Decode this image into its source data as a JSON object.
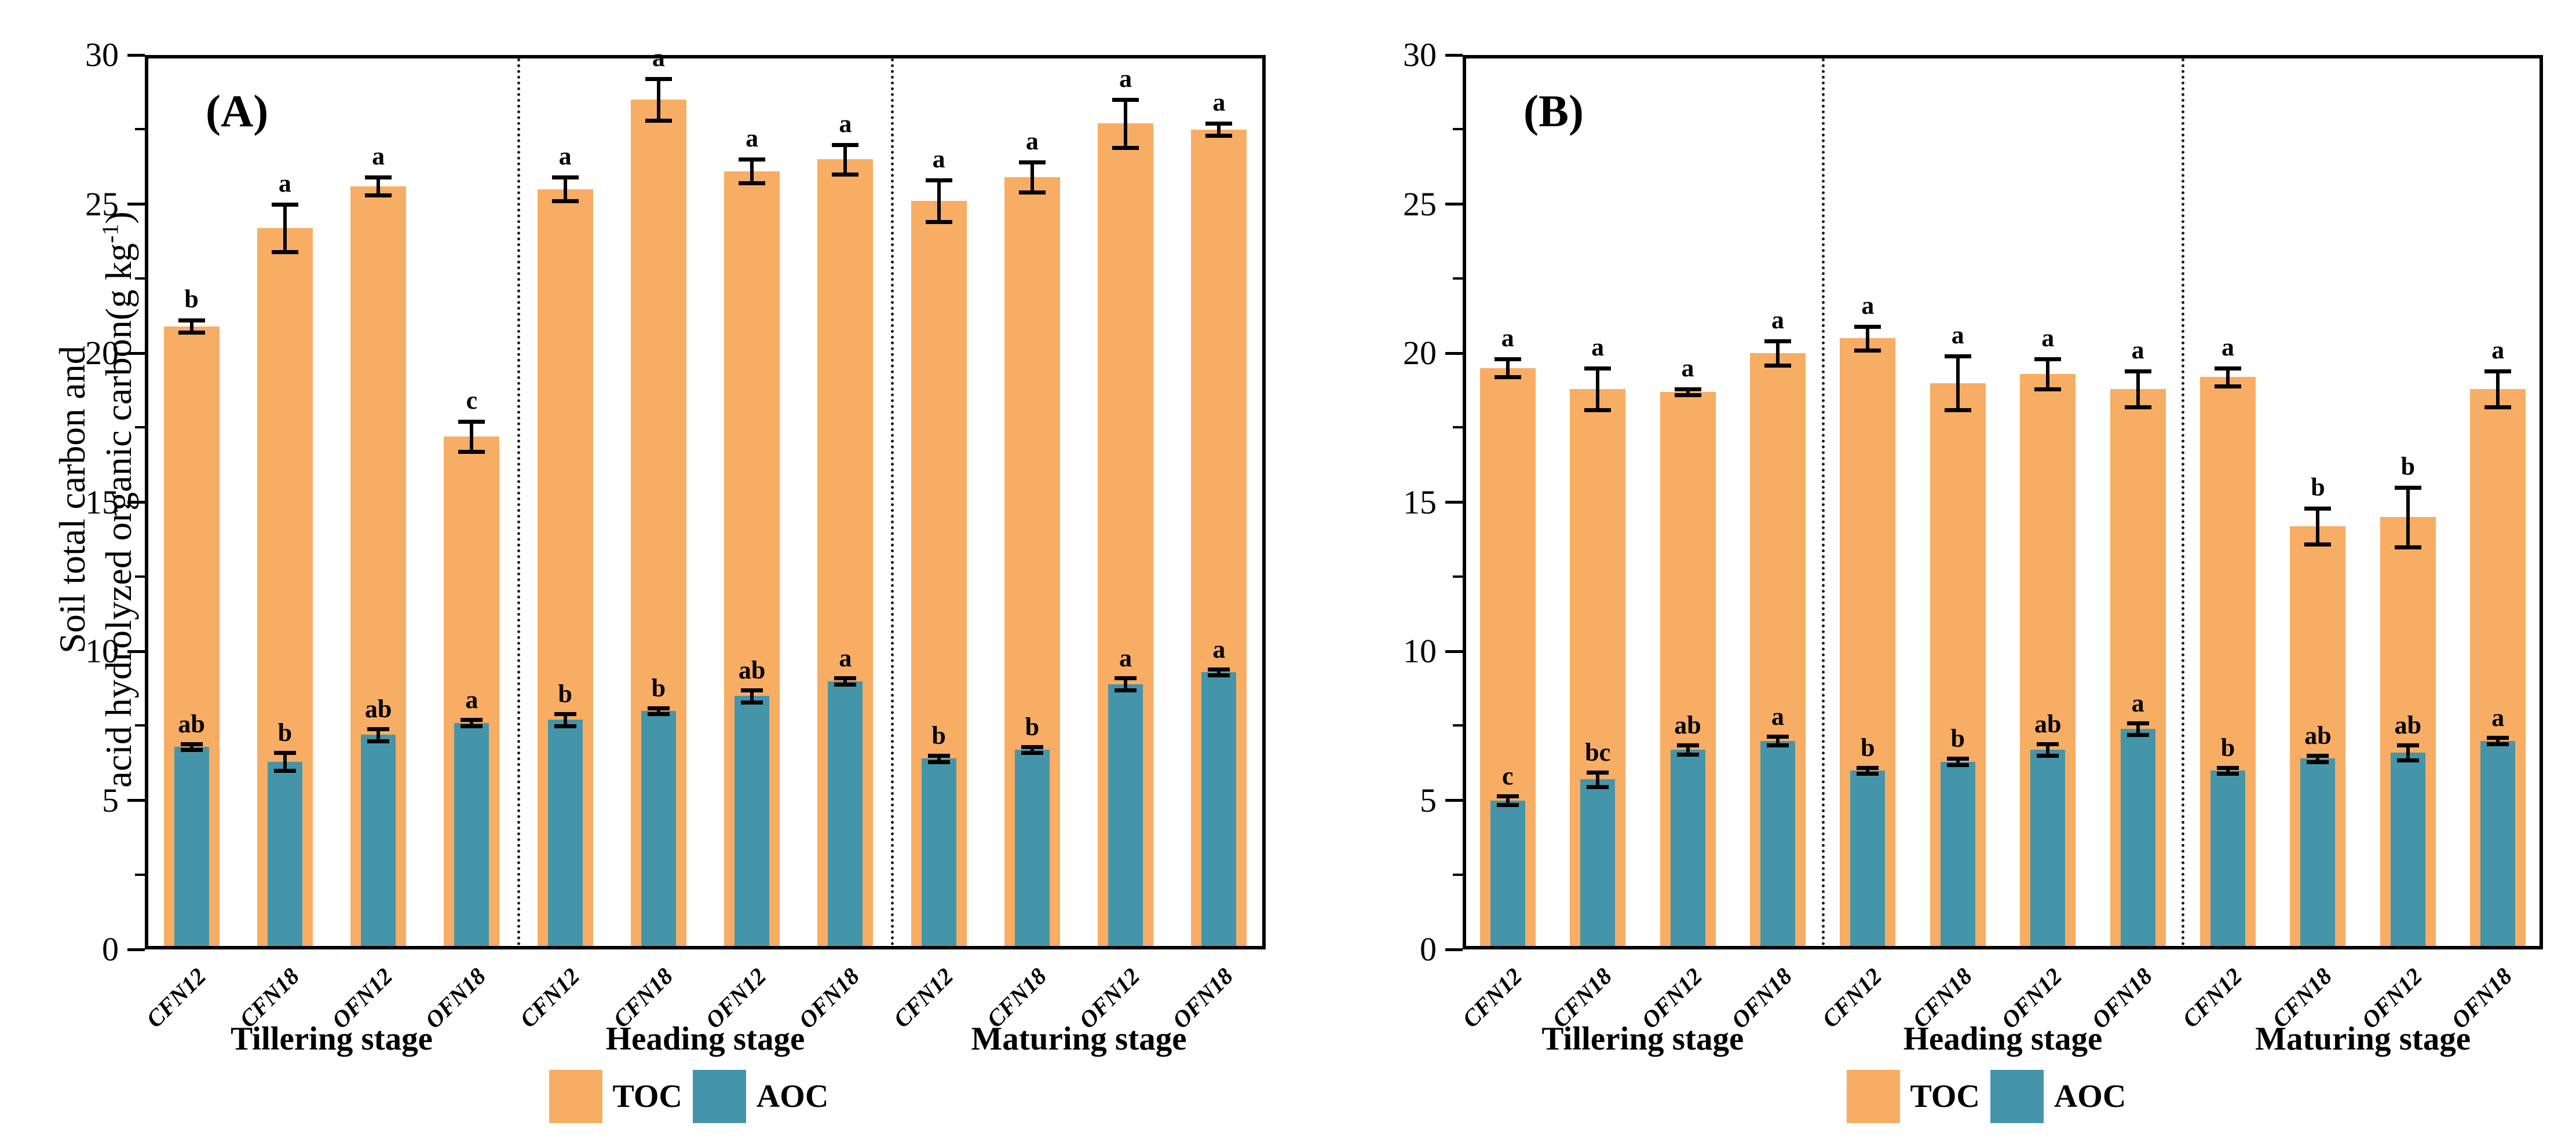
{
  "figure_title": "",
  "y_axis": {
    "title_line1": "Soil total carbon and",
    "title_line2_pre": "acid hydrolyzed organic carbon(g kg",
    "title_line2_sup": "-1",
    "title_line2_post": ")",
    "tick_labels": [
      "0",
      "5",
      "10",
      "15",
      "20",
      "25",
      "30"
    ]
  },
  "legend": {
    "toc_label": "TOC",
    "aoc_label": "AOC"
  },
  "colors": {
    "toc": "#F7AD63",
    "aoc": "#4495AA",
    "axis": "#000000",
    "separator": "#1a1a1a"
  },
  "chart_data": [
    {
      "type": "bar",
      "panel_label": "(A)",
      "ylim": [
        0,
        30
      ],
      "yticks": [
        0,
        5,
        10,
        15,
        20,
        25,
        30
      ],
      "minor_yticks": [
        2.5,
        7.5,
        12.5,
        17.5,
        22.5,
        27.5
      ],
      "grid": false,
      "legend_position": "bottom-center",
      "series_names": [
        "TOC",
        "AOC"
      ],
      "stages": [
        {
          "label": "Tillering stage",
          "groups": [
            {
              "treatment": "CFN12",
              "toc": {
                "value": 20.9,
                "err": 0.2,
                "letter": "b"
              },
              "aoc": {
                "value": 6.8,
                "err": 0.1,
                "letter": "ab"
              }
            },
            {
              "treatment": "CFN18",
              "toc": {
                "value": 24.2,
                "err": 0.8,
                "letter": "a"
              },
              "aoc": {
                "value": 6.3,
                "err": 0.3,
                "letter": "b"
              }
            },
            {
              "treatment": "OFN12",
              "toc": {
                "value": 25.6,
                "err": 0.3,
                "letter": "a"
              },
              "aoc": {
                "value": 7.2,
                "err": 0.2,
                "letter": "ab"
              }
            },
            {
              "treatment": "OFN18",
              "toc": {
                "value": 17.2,
                "err": 0.5,
                "letter": "c"
              },
              "aoc": {
                "value": 7.6,
                "err": 0.1,
                "letter": "a"
              }
            }
          ]
        },
        {
          "label": "Heading stage",
          "groups": [
            {
              "treatment": "CFN12",
              "toc": {
                "value": 25.5,
                "err": 0.4,
                "letter": "a"
              },
              "aoc": {
                "value": 7.7,
                "err": 0.2,
                "letter": "b"
              }
            },
            {
              "treatment": "CFN18",
              "toc": {
                "value": 28.5,
                "err": 0.7,
                "letter": "a"
              },
              "aoc": {
                "value": 8.0,
                "err": 0.1,
                "letter": "b"
              }
            },
            {
              "treatment": "OFN12",
              "toc": {
                "value": 26.1,
                "err": 0.4,
                "letter": "a"
              },
              "aoc": {
                "value": 8.5,
                "err": 0.2,
                "letter": "ab"
              }
            },
            {
              "treatment": "OFN18",
              "toc": {
                "value": 26.5,
                "err": 0.5,
                "letter": "a"
              },
              "aoc": {
                "value": 9.0,
                "err": 0.1,
                "letter": "a"
              }
            }
          ]
        },
        {
          "label": "Maturing stage",
          "groups": [
            {
              "treatment": "CFN12",
              "toc": {
                "value": 25.1,
                "err": 0.7,
                "letter": "a"
              },
              "aoc": {
                "value": 6.4,
                "err": 0.1,
                "letter": "b"
              }
            },
            {
              "treatment": "CFN18",
              "toc": {
                "value": 25.9,
                "err": 0.5,
                "letter": "a"
              },
              "aoc": {
                "value": 6.7,
                "err": 0.1,
                "letter": "b"
              }
            },
            {
              "treatment": "OFN12",
              "toc": {
                "value": 27.7,
                "err": 0.8,
                "letter": "a"
              },
              "aoc": {
                "value": 8.9,
                "err": 0.2,
                "letter": "a"
              }
            },
            {
              "treatment": "OFN18",
              "toc": {
                "value": 27.5,
                "err": 0.2,
                "letter": "a"
              },
              "aoc": {
                "value": 9.3,
                "err": 0.1,
                "letter": "a"
              }
            }
          ]
        }
      ]
    },
    {
      "type": "bar",
      "panel_label": "(B)",
      "ylim": [
        0,
        30
      ],
      "yticks": [
        0,
        5,
        10,
        15,
        20,
        25,
        30
      ],
      "minor_yticks": [
        2.5,
        7.5,
        12.5,
        17.5,
        22.5,
        27.5
      ],
      "grid": false,
      "legend_position": "bottom-center",
      "series_names": [
        "TOC",
        "AOC"
      ],
      "stages": [
        {
          "label": "Tillering stage",
          "groups": [
            {
              "treatment": "CFN12",
              "toc": {
                "value": 19.5,
                "err": 0.3,
                "letter": "a"
              },
              "aoc": {
                "value": 5.0,
                "err": 0.15,
                "letter": "c"
              }
            },
            {
              "treatment": "CFN18",
              "toc": {
                "value": 18.8,
                "err": 0.7,
                "letter": "a"
              },
              "aoc": {
                "value": 5.7,
                "err": 0.25,
                "letter": "bc"
              }
            },
            {
              "treatment": "OFN12",
              "toc": {
                "value": 18.7,
                "err": 0.1,
                "letter": "a"
              },
              "aoc": {
                "value": 6.7,
                "err": 0.15,
                "letter": "ab"
              }
            },
            {
              "treatment": "OFN18",
              "toc": {
                "value": 20.0,
                "err": 0.4,
                "letter": "a"
              },
              "aoc": {
                "value": 7.0,
                "err": 0.15,
                "letter": "a"
              }
            }
          ]
        },
        {
          "label": "Heading stage",
          "groups": [
            {
              "treatment": "CFN12",
              "toc": {
                "value": 20.5,
                "err": 0.4,
                "letter": "a"
              },
              "aoc": {
                "value": 6.0,
                "err": 0.1,
                "letter": "b"
              }
            },
            {
              "treatment": "CFN18",
              "toc": {
                "value": 19.0,
                "err": 0.9,
                "letter": "a"
              },
              "aoc": {
                "value": 6.3,
                "err": 0.1,
                "letter": "b"
              }
            },
            {
              "treatment": "OFN12",
              "toc": {
                "value": 19.3,
                "err": 0.5,
                "letter": "a"
              },
              "aoc": {
                "value": 6.7,
                "err": 0.2,
                "letter": "ab"
              }
            },
            {
              "treatment": "OFN18",
              "toc": {
                "value": 18.8,
                "err": 0.6,
                "letter": "a"
              },
              "aoc": {
                "value": 7.4,
                "err": 0.2,
                "letter": "a"
              }
            }
          ]
        },
        {
          "label": "Maturing stage",
          "groups": [
            {
              "treatment": "CFN12",
              "toc": {
                "value": 19.2,
                "err": 0.3,
                "letter": "a"
              },
              "aoc": {
                "value": 6.0,
                "err": 0.1,
                "letter": "b"
              }
            },
            {
              "treatment": "CFN18",
              "toc": {
                "value": 14.2,
                "err": 0.6,
                "letter": "b"
              },
              "aoc": {
                "value": 6.4,
                "err": 0.1,
                "letter": "ab"
              }
            },
            {
              "treatment": "OFN12",
              "toc": {
                "value": 14.5,
                "err": 1.0,
                "letter": "b"
              },
              "aoc": {
                "value": 6.6,
                "err": 0.25,
                "letter": "ab"
              }
            },
            {
              "treatment": "OFN18",
              "toc": {
                "value": 18.8,
                "err": 0.6,
                "letter": "a"
              },
              "aoc": {
                "value": 7.0,
                "err": 0.1,
                "letter": "a"
              }
            }
          ]
        }
      ]
    }
  ]
}
